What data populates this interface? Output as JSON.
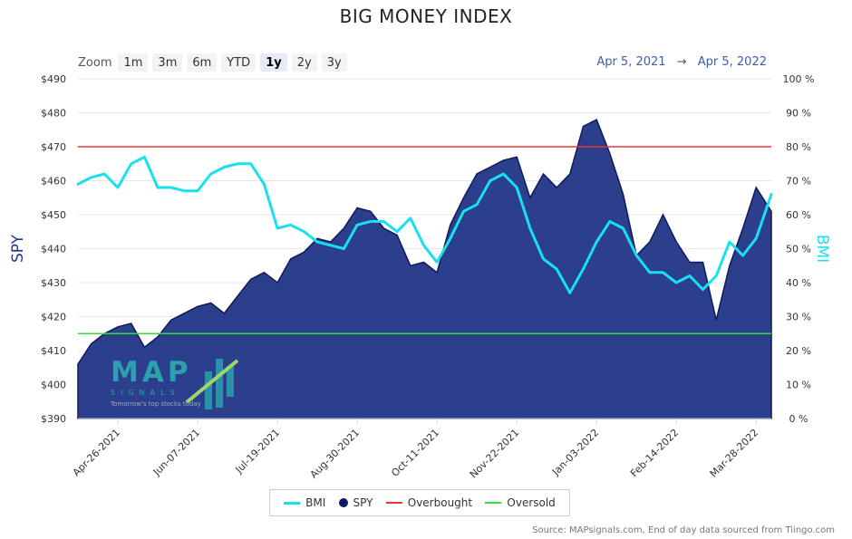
{
  "title": "BIG MONEY INDEX",
  "zoom": {
    "label": "Zoom",
    "buttons": [
      "1m",
      "3m",
      "6m",
      "YTD",
      "1y",
      "2y",
      "3y"
    ],
    "active": "1y"
  },
  "range": {
    "from": "Apr 5, 2021",
    "arrow": "→",
    "to": "Apr 5, 2022"
  },
  "logo": {
    "name": "MAP",
    "sub": "SIGNALS",
    "tagline": "Tomorrow's top stocks today"
  },
  "legend": [
    "BMI",
    "SPY",
    "Overbought",
    "Oversold"
  ],
  "source": "Source: MAPsignals.com, End of day data sourced from Tiingo.com",
  "colors": {
    "bmi": "#19e0ee",
    "spy_fill": "#2b3f8c",
    "spy_line": "#0e1a5c",
    "overbought": "#e53935",
    "oversold": "#33dd33",
    "range_text": "#3a5da8"
  },
  "chart_data": {
    "type": "area",
    "title": "BIG MONEY INDEX",
    "xlabel": "",
    "ylabel": "SPY",
    "ylabel_right": "BMI",
    "x_ticks": [
      "Apr-26-2021",
      "Jun-07-2021",
      "Jul-19-2021",
      "Aug-30-2021",
      "Oct-11-2021",
      "Nov-22-2021",
      "Jan-03-2022",
      "Feb-14-2022",
      "Mar-28-2022"
    ],
    "y_left_ticks": [
      "$390",
      "$400",
      "$410",
      "$420",
      "$430",
      "$440",
      "$450",
      "$460",
      "$470",
      "$480",
      "$490"
    ],
    "y_right_ticks": [
      "0 %",
      "10 %",
      "20 %",
      "30 %",
      "40 %",
      "50 %",
      "60 %",
      "70 %",
      "80 %",
      "90 %",
      "100 %"
    ],
    "ylim_left": [
      390,
      490
    ],
    "ylim_right": [
      0,
      100
    ],
    "x_range": [
      "2021-04-05",
      "2022-04-05"
    ],
    "overbought": 80,
    "oversold": 25,
    "series": [
      {
        "name": "SPY",
        "axis": "left",
        "type": "area",
        "points": [
          [
            "2021-04-05",
            406
          ],
          [
            "2021-04-12",
            412
          ],
          [
            "2021-04-19",
            415
          ],
          [
            "2021-04-26",
            417
          ],
          [
            "2021-05-03",
            418
          ],
          [
            "2021-05-10",
            411
          ],
          [
            "2021-05-17",
            414
          ],
          [
            "2021-05-24",
            419
          ],
          [
            "2021-05-31",
            421
          ],
          [
            "2021-06-07",
            423
          ],
          [
            "2021-06-14",
            424
          ],
          [
            "2021-06-21",
            421
          ],
          [
            "2021-06-28",
            426
          ],
          [
            "2021-07-05",
            431
          ],
          [
            "2021-07-12",
            433
          ],
          [
            "2021-07-19",
            430
          ],
          [
            "2021-07-26",
            437
          ],
          [
            "2021-08-02",
            439
          ],
          [
            "2021-08-09",
            443
          ],
          [
            "2021-08-16",
            442
          ],
          [
            "2021-08-23",
            446
          ],
          [
            "2021-08-30",
            452
          ],
          [
            "2021-09-06",
            451
          ],
          [
            "2021-09-13",
            446
          ],
          [
            "2021-09-20",
            444
          ],
          [
            "2021-09-27",
            435
          ],
          [
            "2021-10-04",
            436
          ],
          [
            "2021-10-11",
            433
          ],
          [
            "2021-10-18",
            447
          ],
          [
            "2021-10-25",
            455
          ],
          [
            "2021-11-01",
            462
          ],
          [
            "2021-11-08",
            464
          ],
          [
            "2021-11-15",
            466
          ],
          [
            "2021-11-22",
            467
          ],
          [
            "2021-11-29",
            455
          ],
          [
            "2021-12-06",
            462
          ],
          [
            "2021-12-13",
            458
          ],
          [
            "2021-12-20",
            462
          ],
          [
            "2021-12-27",
            476
          ],
          [
            "2022-01-03",
            478
          ],
          [
            "2022-01-10",
            468
          ],
          [
            "2022-01-17",
            456
          ],
          [
            "2022-01-24",
            438
          ],
          [
            "2022-01-31",
            442
          ],
          [
            "2022-02-07",
            450
          ],
          [
            "2022-02-14",
            442
          ],
          [
            "2022-02-21",
            436
          ],
          [
            "2022-02-28",
            436
          ],
          [
            "2022-03-07",
            419
          ],
          [
            "2022-03-14",
            435
          ],
          [
            "2022-03-21",
            446
          ],
          [
            "2022-03-28",
            458
          ],
          [
            "2022-04-05",
            451
          ]
        ]
      },
      {
        "name": "BMI",
        "axis": "right",
        "type": "line",
        "points": [
          [
            "2021-04-05",
            69
          ],
          [
            "2021-04-12",
            71
          ],
          [
            "2021-04-19",
            72
          ],
          [
            "2021-04-26",
            68
          ],
          [
            "2021-05-03",
            75
          ],
          [
            "2021-05-10",
            77
          ],
          [
            "2021-05-17",
            68
          ],
          [
            "2021-05-24",
            68
          ],
          [
            "2021-05-31",
            67
          ],
          [
            "2021-06-07",
            67
          ],
          [
            "2021-06-14",
            72
          ],
          [
            "2021-06-21",
            74
          ],
          [
            "2021-06-28",
            75
          ],
          [
            "2021-07-05",
            75
          ],
          [
            "2021-07-12",
            69
          ],
          [
            "2021-07-19",
            56
          ],
          [
            "2021-07-26",
            57
          ],
          [
            "2021-08-02",
            55
          ],
          [
            "2021-08-09",
            52
          ],
          [
            "2021-08-16",
            51
          ],
          [
            "2021-08-23",
            50
          ],
          [
            "2021-08-30",
            57
          ],
          [
            "2021-09-06",
            58
          ],
          [
            "2021-09-13",
            58
          ],
          [
            "2021-09-20",
            55
          ],
          [
            "2021-09-27",
            59
          ],
          [
            "2021-10-04",
            51
          ],
          [
            "2021-10-11",
            46
          ],
          [
            "2021-10-18",
            53
          ],
          [
            "2021-10-25",
            61
          ],
          [
            "2021-11-01",
            63
          ],
          [
            "2021-11-08",
            70
          ],
          [
            "2021-11-15",
            72
          ],
          [
            "2021-11-22",
            68
          ],
          [
            "2021-11-29",
            56
          ],
          [
            "2021-12-06",
            47
          ],
          [
            "2021-12-13",
            44
          ],
          [
            "2021-12-20",
            37
          ],
          [
            "2021-12-27",
            44
          ],
          [
            "2022-01-03",
            52
          ],
          [
            "2022-01-10",
            58
          ],
          [
            "2022-01-17",
            56
          ],
          [
            "2022-01-24",
            48
          ],
          [
            "2022-01-31",
            43
          ],
          [
            "2022-02-07",
            43
          ],
          [
            "2022-02-14",
            40
          ],
          [
            "2022-02-21",
            42
          ],
          [
            "2022-02-28",
            38
          ],
          [
            "2022-03-07",
            42
          ],
          [
            "2022-03-14",
            52
          ],
          [
            "2022-03-21",
            48
          ],
          [
            "2022-03-28",
            53
          ],
          [
            "2022-04-05",
            66
          ]
        ]
      }
    ]
  }
}
